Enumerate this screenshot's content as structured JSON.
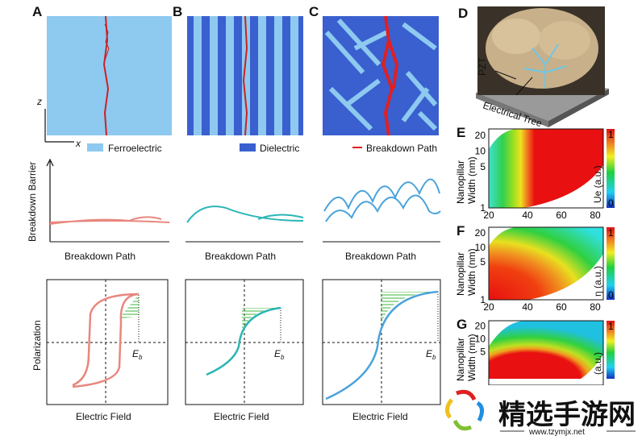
{
  "panels": {
    "a": "A",
    "b": "B",
    "c": "C",
    "d": "D",
    "e": "E",
    "f": "F",
    "g": "G"
  },
  "axes_a": {
    "z": "z",
    "x": "x"
  },
  "legend": {
    "ferroelectric": "Ferroelectric",
    "dielectric": "Dielectric",
    "breakdown_path": "Breakdown Path"
  },
  "legend_colors": {
    "ferroelectric": "#8ec9f0",
    "dielectric": "#3a5fcf",
    "breakdown_path": "#e02020"
  },
  "row2": {
    "ylabel": "Breakdown Barrier",
    "xlabel": "Breakdown Path"
  },
  "row3": {
    "ylabel": "Polarization",
    "xlabel": "Electric Field",
    "eb": "E",
    "eb_sub": "b"
  },
  "curve_colors": {
    "a": "#e8877e",
    "b": "#2bb5b5",
    "c": "#4aa3db"
  },
  "panel_d": {
    "pzt": "PZT",
    "tree": "Electrical Tree"
  },
  "heatmaps": {
    "ylabel1": "Nanopillar",
    "ylabel2": "Width (nm)",
    "yticks": [
      "20",
      "10",
      "5",
      "1"
    ],
    "xticks": [
      "20",
      "40",
      "60",
      "80"
    ],
    "cbar_max": "1",
    "cbar_min": "0",
    "e_cbar": "Ue (a.u.)",
    "f_cbar": "η (a.u.)",
    "g_cbar": "(a.u.)"
  },
  "watermark": {
    "title": "精选手游网",
    "url": "www.tzymjx.net"
  }
}
